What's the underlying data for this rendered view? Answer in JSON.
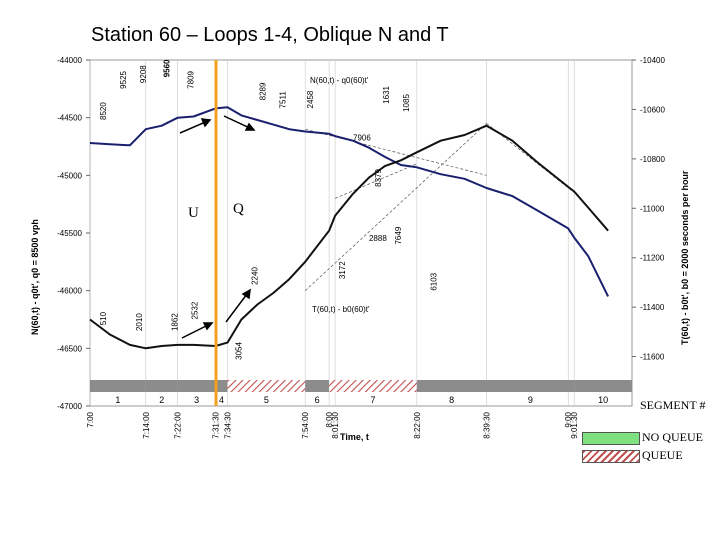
{
  "page": {
    "title": "Station 60 – Loops 1-4, Oblique N and T"
  },
  "chart_data": {
    "type": "line",
    "title": "Station 60 – Loops 1-4, Oblique N and T",
    "xlabel": "Time, t",
    "ylabel_left": "N(60,t) - q0t', q0 = 8500 vph",
    "ylabel_right": "T(60,t) - b0t', b0 = 2000 seconds per hour",
    "y_left_range": [
      -47000,
      -44000
    ],
    "y_left_ticks": [
      "-44000",
      "-44500",
      "-45000",
      "-45500",
      "-46000",
      "-46500",
      "-47000"
    ],
    "y_right_range": [
      -11800,
      -10400
    ],
    "y_right_ticks": [
      "-10400",
      "-10600",
      "-10800",
      "-11000",
      "-11200",
      "-11400",
      "-11600"
    ],
    "x_ticks": [
      "7:00",
      "7:14:00",
      "7:22:00",
      "7:31:30",
      "7:34:30",
      "7:54:00",
      "8:00",
      "8:01:30",
      "8:22:00",
      "8:39:30",
      "9:00",
      "9:01:30"
    ],
    "series": [
      {
        "name": "N(60,t) - q0(60)t'",
        "axis": "left",
        "color": "#1a1f6e",
        "x": [
          "7:00",
          "7:05",
          "7:10",
          "7:14:00",
          "7:18",
          "7:22:00",
          "7:26",
          "7:31:30",
          "7:34:30",
          "7:38",
          "7:42",
          "7:46",
          "7:50",
          "7:54:00",
          "8:00",
          "8:01:30",
          "8:06",
          "8:10",
          "8:14",
          "8:18",
          "8:22:00",
          "8:28",
          "8:34",
          "8:39:30",
          "8:46",
          "8:52",
          "9:00",
          "9:01:30",
          "9:05",
          "9:10"
        ],
        "y": [
          -44720,
          -44730,
          -44740,
          -44600,
          -44570,
          -44500,
          -44490,
          -44420,
          -44410,
          -44480,
          -44520,
          -44560,
          -44600,
          -44620,
          -44640,
          -44660,
          -44700,
          -44760,
          -44840,
          -44910,
          -44930,
          -44990,
          -45030,
          -45110,
          -45180,
          -45300,
          -45460,
          -45540,
          -45700,
          -46050
        ]
      },
      {
        "name": "T(60,t) - b0(60)t'",
        "axis": "left",
        "color": "#111111",
        "x": [
          "7:00",
          "7:05",
          "7:10",
          "7:14:00",
          "7:18",
          "7:22:00",
          "7:26",
          "7:31:30",
          "7:34:30",
          "7:38",
          "7:42",
          "7:46",
          "7:50",
          "7:54:00",
          "8:00",
          "8:01:30",
          "8:06",
          "8:10",
          "8:14",
          "8:18",
          "8:22:00",
          "8:28",
          "8:34",
          "8:39:30",
          "8:46",
          "8:52",
          "9:00",
          "9:01:30",
          "9:05",
          "9:10"
        ],
        "y": [
          -46250,
          -46380,
          -46470,
          -46500,
          -46480,
          -46470,
          -46470,
          -46480,
          -46450,
          -46250,
          -46120,
          -46020,
          -45900,
          -45750,
          -45480,
          -45350,
          -45160,
          -45020,
          -44920,
          -44870,
          -44800,
          -44700,
          -44650,
          -44570,
          -44700,
          -44880,
          -45100,
          -45140,
          -45280,
          -45480
        ]
      }
    ],
    "point_labels": [
      "8520",
      "9525",
      "9208",
      "9560",
      "7809",
      "8289",
      "7511",
      "2458",
      "1631",
      "1085",
      "7906",
      "8379",
      "7649",
      "2888",
      "3172",
      "2240",
      "6103",
      "510",
      "2010",
      "1862",
      "2532",
      "3054"
    ],
    "curve_labels": [
      "N(60,t) - q0(60)t'",
      "T(60,t) - b0(60)t'"
    ],
    "annotations": [
      "U",
      "Q"
    ],
    "segments": {
      "caption": "SEGMENT #",
      "items": [
        {
          "label": "1",
          "state": "normal"
        },
        {
          "label": "2",
          "state": "normal"
        },
        {
          "label": "3",
          "state": "normal"
        },
        {
          "label": "4",
          "state": "normal"
        },
        {
          "label": "5",
          "state": "queue"
        },
        {
          "label": "6",
          "state": "normal"
        },
        {
          "label": "7",
          "state": "queue"
        },
        {
          "label": "8",
          "state": "normal"
        },
        {
          "label": "9",
          "state": "normal"
        },
        {
          "label": "10",
          "state": "normal"
        }
      ]
    },
    "legend": [
      {
        "label": "NO QUEUE",
        "color": "#7ee07e"
      },
      {
        "label": "QUEUE",
        "color": "#c0504d"
      }
    ],
    "colors": {
      "segment_bar": "#8c8c8c",
      "vertical_marker": "#f0a020",
      "gridline": "#bbbbbb"
    }
  }
}
